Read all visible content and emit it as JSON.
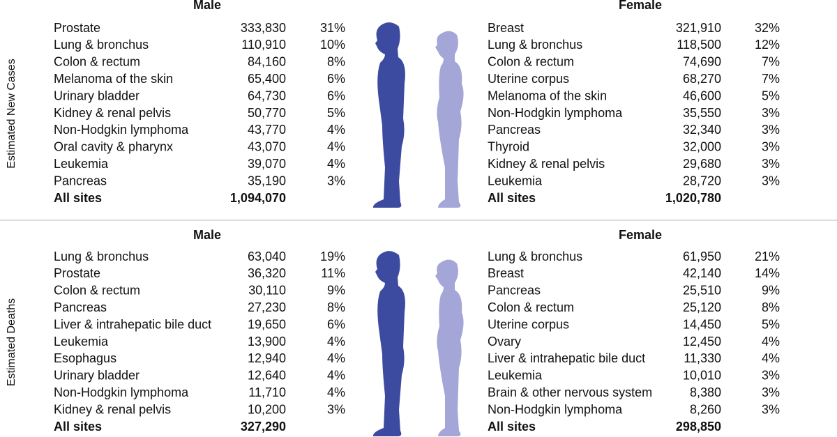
{
  "sections": [
    {
      "label": "Estimated New Cases",
      "male": {
        "title": "Male",
        "rows": [
          [
            "Prostate",
            "333,830",
            "31%"
          ],
          [
            "Lung & bronchus",
            "110,910",
            "10%"
          ],
          [
            "Colon & rectum",
            "84,160",
            "8%"
          ],
          [
            "Melanoma of the skin",
            "65,400",
            "6%"
          ],
          [
            "Urinary bladder",
            "64,730",
            "6%"
          ],
          [
            "Kidney & renal pelvis",
            "50,770",
            "5%"
          ],
          [
            "Non-Hodgkin lymphoma",
            "43,770",
            "4%"
          ],
          [
            "Oral cavity & pharynx",
            "43,070",
            "4%"
          ],
          [
            "Leukemia",
            "39,070",
            "4%"
          ],
          [
            "Pancreas",
            "35,190",
            "3%"
          ]
        ],
        "total": [
          "All sites",
          "1,094,070"
        ]
      },
      "female": {
        "title": "Female",
        "rows": [
          [
            "Breast",
            "321,910",
            "32%"
          ],
          [
            "Lung & bronchus",
            "118,500",
            "12%"
          ],
          [
            "Colon & rectum",
            "74,690",
            "7%"
          ],
          [
            "Uterine corpus",
            "68,270",
            "7%"
          ],
          [
            "Melanoma of the skin",
            "46,600",
            "5%"
          ],
          [
            "Non-Hodgkin lymphoma",
            "35,550",
            "3%"
          ],
          [
            "Pancreas",
            "32,340",
            "3%"
          ],
          [
            "Thyroid",
            "32,000",
            "3%"
          ],
          [
            "Kidney & renal pelvis",
            "29,680",
            "3%"
          ],
          [
            "Leukemia",
            "28,720",
            "3%"
          ]
        ],
        "total": [
          "All sites",
          "1,020,780"
        ]
      }
    },
    {
      "label": "Estimated Deaths",
      "male": {
        "title": "Male",
        "rows": [
          [
            "Lung & bronchus",
            "63,040",
            "19%"
          ],
          [
            "Prostate",
            "36,320",
            "11%"
          ],
          [
            "Colon & rectum",
            "30,110",
            "9%"
          ],
          [
            "Pancreas",
            "27,230",
            "8%"
          ],
          [
            "Liver & intrahepatic bile duct",
            "19,650",
            "6%"
          ],
          [
            "Leukemia",
            "13,900",
            "4%"
          ],
          [
            "Esophagus",
            "12,940",
            "4%"
          ],
          [
            "Urinary bladder",
            "12,640",
            "4%"
          ],
          [
            "Non-Hodgkin lymphoma",
            "11,710",
            "4%"
          ],
          [
            "Kidney & renal pelvis",
            "10,200",
            "3%"
          ]
        ],
        "total": [
          "All sites",
          "327,290"
        ]
      },
      "female": {
        "title": "Female",
        "rows": [
          [
            "Lung & bronchus",
            "61,950",
            "21%"
          ],
          [
            "Breast",
            "42,140",
            "14%"
          ],
          [
            "Pancreas",
            "25,510",
            "9%"
          ],
          [
            "Colon & rectum",
            "25,120",
            "8%"
          ],
          [
            "Uterine corpus",
            "14,450",
            "5%"
          ],
          [
            "Ovary",
            "12,450",
            "4%"
          ],
          [
            "Liver & intrahepatic bile duct",
            "11,330",
            "4%"
          ],
          [
            "Leukemia",
            "10,010",
            "3%"
          ],
          [
            "Brain & other nervous system",
            "8,380",
            "3%"
          ],
          [
            "Non-Hodgkin lymphoma",
            "8,260",
            "3%"
          ]
        ],
        "total": [
          "All sites",
          "298,850"
        ]
      }
    }
  ]
}
